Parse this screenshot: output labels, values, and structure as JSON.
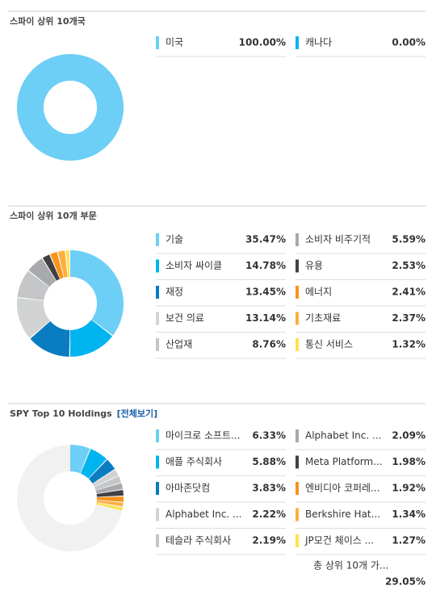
{
  "chart_data": [
    {
      "type": "pie",
      "title": "스파이 상위 10개국",
      "categories": [
        "미국",
        "캐나다"
      ],
      "values": [
        100,
        0
      ],
      "value_labels": [
        "100.00%",
        "0.00%"
      ],
      "colors": [
        "#6dcff6",
        "#00b5ef"
      ]
    },
    {
      "type": "pie",
      "title": "스파이 상위 10개 부문",
      "categories": [
        "기술",
        "소비자 싸이클",
        "재정",
        "보건 의료",
        "산업재",
        "소비자 비주기적",
        "유용",
        "에너지",
        "기초재료",
        "통신 서비스"
      ],
      "values": [
        35.47,
        14.78,
        13.45,
        13.14,
        8.76,
        5.59,
        2.53,
        2.41,
        2.37,
        1.32
      ],
      "value_labels": [
        "35.47%",
        "14.78%",
        "13.45%",
        "13.14%",
        "8.76%",
        "5.59%",
        "2.53%",
        "2.41%",
        "2.37%",
        "1.32%"
      ],
      "colors": [
        "#6dcff6",
        "#00b5ef",
        "#0a7cc1",
        "#d1d3d4",
        "#c4c6c8",
        "#a7a9ac",
        "#414042",
        "#f7941d",
        "#fbb040",
        "#ffe14f"
      ]
    },
    {
      "type": "pie",
      "title": "SPY Top 10 Holdings",
      "link": "[전체보기]",
      "categories": [
        "마이크로 소프트...",
        "애플 주식회사",
        "아마존닷컴",
        "Alphabet Inc. ...",
        "테슬라 주식회사",
        "Alphabet Inc. ...",
        "Meta Platform...",
        "엔비디아 코퍼레...",
        "Berkshire Hat...",
        "JP모건 체이스 ..."
      ],
      "values": [
        6.33,
        5.88,
        3.83,
        2.22,
        2.19,
        2.09,
        1.98,
        1.92,
        1.34,
        1.27
      ],
      "value_labels": [
        "6.33%",
        "5.88%",
        "3.83%",
        "2.22%",
        "2.19%",
        "2.09%",
        "1.98%",
        "1.92%",
        "1.34%",
        "1.27%"
      ],
      "colors": [
        "#6dcff6",
        "#00b5ef",
        "#0a7cc1",
        "#d1d3d4",
        "#c4c6c8",
        "#a7a9ac",
        "#414042",
        "#f7941d",
        "#fbb040",
        "#ffe14f"
      ],
      "total_label": "총 상위 10개 가...",
      "total_value": 29.05,
      "total_value_label": "29.05%"
    }
  ]
}
